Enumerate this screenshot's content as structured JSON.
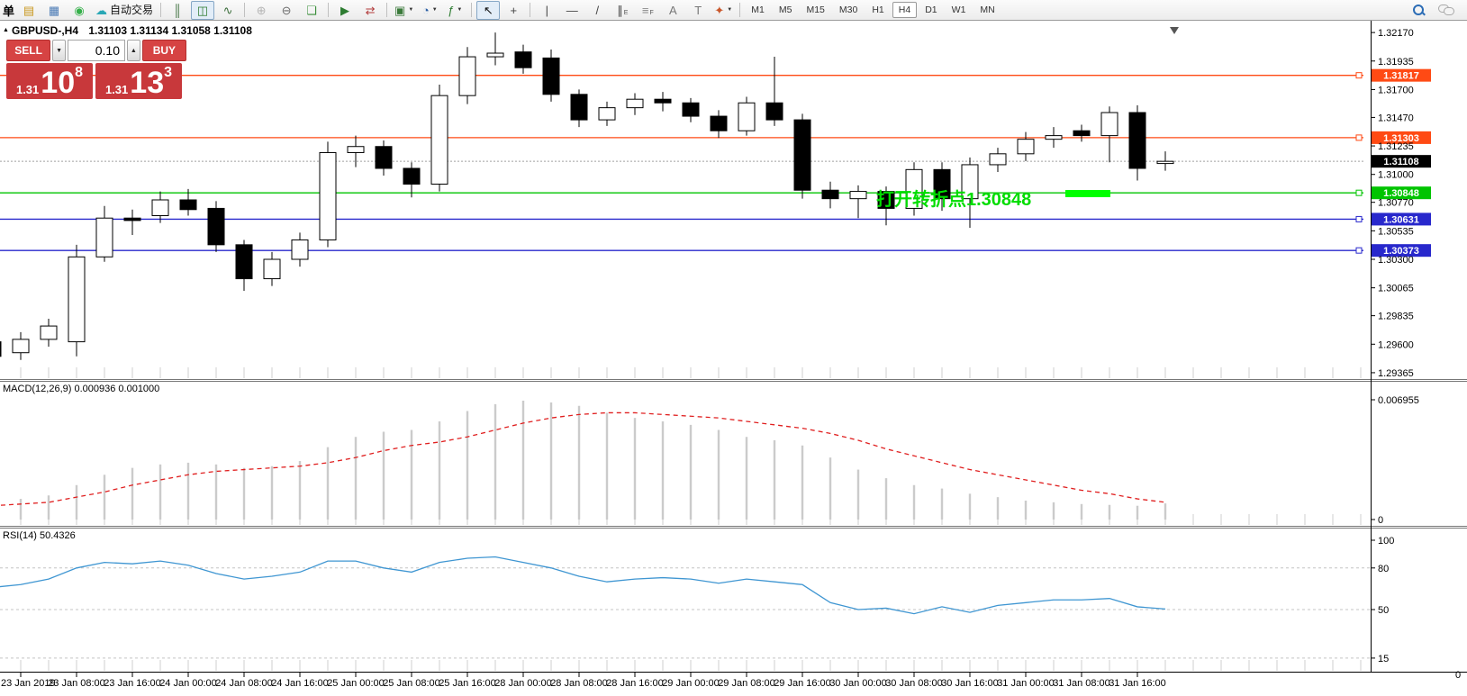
{
  "toolbar": {
    "left_text": "单",
    "items": [
      {
        "name": "new-order-icon",
        "glyph": "▤",
        "color": "#c9971c"
      },
      {
        "name": "market-watch-icon",
        "glyph": "▦",
        "color": "#4a7ab5"
      },
      {
        "name": "signals-icon",
        "glyph": "◉",
        "color": "#35b04a"
      },
      {
        "name": "auto-trading-button",
        "glyph": "☁",
        "color": "#28a7b5",
        "label": "自动交易"
      },
      {
        "sep": true
      },
      {
        "name": "bar-chart-icon",
        "glyph": "║",
        "color": "#3c6e3c"
      },
      {
        "name": "candlestick-chart-icon",
        "glyph": "◫",
        "color": "#2c7a2c",
        "selected": true
      },
      {
        "name": "line-chart-icon",
        "glyph": "∿",
        "color": "#3c6e3c"
      },
      {
        "sep": true
      },
      {
        "name": "zoom-in-icon",
        "glyph": "⊕",
        "color": "#b5b5b5"
      },
      {
        "name": "zoom-out-icon",
        "glyph": "⊖",
        "color": "#6d6d6d"
      },
      {
        "name": "tile-windows-icon",
        "glyph": "❏",
        "color": "#3a8f3a"
      },
      {
        "sep": true
      },
      {
        "name": "auto-scroll-icon",
        "glyph": "▶",
        "color": "#2e7d32"
      },
      {
        "name": "chart-shift-icon",
        "glyph": "⇄",
        "color": "#b23b3b"
      },
      {
        "sep": true
      },
      {
        "name": "new-template-icon",
        "glyph": "▣",
        "color": "#3a7a3a",
        "dropdown": true
      },
      {
        "name": "periods-icon",
        "glyph": "◔",
        "color": "#2b5fa5",
        "dropdown": true
      },
      {
        "name": "indicators-icon",
        "glyph": "ƒ",
        "color": "#2e7d32",
        "dropdown": true
      },
      {
        "sep": true
      },
      {
        "name": "cursor-icon",
        "glyph": "↖",
        "color": "#111",
        "selected": true
      },
      {
        "name": "crosshair-icon",
        "glyph": "+",
        "color": "#444"
      },
      {
        "sep": true
      },
      {
        "name": "vertical-line-icon",
        "glyph": "|",
        "color": "#444"
      },
      {
        "name": "horizontal-line-icon",
        "glyph": "—",
        "color": "#444"
      },
      {
        "name": "trendline-icon",
        "glyph": "/",
        "color": "#444"
      },
      {
        "name": "channel-icon",
        "glyph": "∥",
        "color": "#444",
        "sub": "E"
      },
      {
        "name": "fibonacci-icon",
        "glyph": "≡",
        "color": "#8a8a8a",
        "sub": "F"
      },
      {
        "name": "text-icon",
        "glyph": "A",
        "color": "#777"
      },
      {
        "name": "text-label-icon",
        "glyph": "T",
        "color": "#777"
      },
      {
        "name": "arrows-icon",
        "glyph": "✦",
        "color": "#c9572b",
        "dropdown": true
      },
      {
        "sep": true
      }
    ],
    "timeframes": [
      "M1",
      "M5",
      "M15",
      "M30",
      "H1",
      "H4",
      "D1",
      "W1",
      "MN"
    ],
    "selected_timeframe": "H4"
  },
  "icons": {
    "caret_down": "▼",
    "caret_up": "▲",
    "collapse": "▲"
  },
  "chart": {
    "symbol_period": "GBPUSD-,H4",
    "ohlc": "1.31103 1.31134 1.31058 1.31108"
  },
  "trade_panel": {
    "sell_label": "SELL",
    "buy_label": "BUY",
    "volume": "0.10",
    "sell": {
      "prefix": "1.31",
      "big": "10",
      "sup": "8"
    },
    "buy": {
      "prefix": "1.31",
      "big": "13",
      "sup": "3"
    }
  },
  "colors": {
    "lines": {
      "orange": "#ff4a14",
      "green": "#00c400",
      "blue": "#2828cc"
    },
    "current_tag": "#000000",
    "current_line": "#a0a0a0",
    "macd_hist": "#cbcbcb",
    "macd_signal": "#e02020",
    "rsi_line": "#3f96d2",
    "annotation_green": "#00dd00",
    "annotation_bar": "#00ff00"
  },
  "chart_data": {
    "type": "candlestick+indicators",
    "symbol": "GBPUSD-",
    "timeframe": "H4",
    "price_axis_ticks": [
      "1.32170",
      "1.31935",
      "1.31700",
      "1.31470",
      "1.31235",
      "1.31000",
      "1.30770",
      "1.30535",
      "1.30300",
      "1.30065",
      "1.29835",
      "1.29600",
      "1.29365"
    ],
    "time_labels": [
      "23 Jan 2019",
      "23 Jan 08:00",
      "23 Jan 16:00",
      "24 Jan 00:00",
      "24 Jan 08:00",
      "24 Jan 16:00",
      "25 Jan 00:00",
      "25 Jan 08:00",
      "25 Jan 16:00",
      "28 Jan 00:00",
      "28 Jan 08:00",
      "28 Jan 16:00",
      "29 Jan 00:00",
      "29 Jan 08:00",
      "29 Jan 16:00",
      "30 Jan 00:00",
      "30 Jan 08:00",
      "30 Jan 16:00",
      "31 Jan 00:00",
      "31 Jan 08:00",
      "31 Jan 16:00"
    ],
    "candles": [
      {
        "t": "22 Jan 20:00",
        "o": 1.2962,
        "h": 1.2966,
        "l": 1.2944,
        "c": 1.295
      },
      {
        "t": "23 Jan 00:00",
        "o": 1.2953,
        "h": 1.297,
        "l": 1.2947,
        "c": 1.2964
      },
      {
        "t": "23 Jan 04:00",
        "o": 1.2964,
        "h": 1.2981,
        "l": 1.2958,
        "c": 1.2975
      },
      {
        "t": "23 Jan 08:00",
        "o": 1.2962,
        "h": 1.3042,
        "l": 1.295,
        "c": 1.3032
      },
      {
        "t": "23 Jan 12:00",
        "o": 1.3032,
        "h": 1.3074,
        "l": 1.3028,
        "c": 1.3064
      },
      {
        "t": "23 Jan 16:00",
        "o": 1.3064,
        "h": 1.3071,
        "l": 1.305,
        "c": 1.3062
      },
      {
        "t": "23 Jan 20:00",
        "o": 1.3066,
        "h": 1.3086,
        "l": 1.306,
        "c": 1.3079
      },
      {
        "t": "24 Jan 00:00",
        "o": 1.3079,
        "h": 1.3088,
        "l": 1.3066,
        "c": 1.3071
      },
      {
        "t": "24 Jan 04:00",
        "o": 1.3072,
        "h": 1.3078,
        "l": 1.3036,
        "c": 1.3042
      },
      {
        "t": "24 Jan 08:00",
        "o": 1.3042,
        "h": 1.3046,
        "l": 1.3004,
        "c": 1.3014
      },
      {
        "t": "24 Jan 12:00",
        "o": 1.3014,
        "h": 1.3036,
        "l": 1.3008,
        "c": 1.303
      },
      {
        "t": "24 Jan 16:00",
        "o": 1.303,
        "h": 1.3052,
        "l": 1.3024,
        "c": 1.3046
      },
      {
        "t": "24 Jan 20:00",
        "o": 1.3046,
        "h": 1.3127,
        "l": 1.304,
        "c": 1.3118
      },
      {
        "t": "25 Jan 00:00",
        "o": 1.3118,
        "h": 1.3132,
        "l": 1.3106,
        "c": 1.3123
      },
      {
        "t": "25 Jan 04:00",
        "o": 1.3123,
        "h": 1.3128,
        "l": 1.3099,
        "c": 1.3105
      },
      {
        "t": "25 Jan 08:00",
        "o": 1.3105,
        "h": 1.311,
        "l": 1.3081,
        "c": 1.3092
      },
      {
        "t": "25 Jan 12:00",
        "o": 1.3092,
        "h": 1.3174,
        "l": 1.3086,
        "c": 1.3165
      },
      {
        "t": "25 Jan 16:00",
        "o": 1.3165,
        "h": 1.3205,
        "l": 1.3158,
        "c": 1.3197
      },
      {
        "t": "25 Jan 20:00",
        "o": 1.3197,
        "h": 1.3217,
        "l": 1.319,
        "c": 1.32
      },
      {
        "t": "28 Jan 00:00",
        "o": 1.3201,
        "h": 1.3207,
        "l": 1.3183,
        "c": 1.3188
      },
      {
        "t": "28 Jan 04:00",
        "o": 1.3196,
        "h": 1.3203,
        "l": 1.316,
        "c": 1.3166
      },
      {
        "t": "28 Jan 08:00",
        "o": 1.3166,
        "h": 1.317,
        "l": 1.3139,
        "c": 1.3145
      },
      {
        "t": "28 Jan 12:00",
        "o": 1.3145,
        "h": 1.316,
        "l": 1.314,
        "c": 1.3155
      },
      {
        "t": "28 Jan 16:00",
        "o": 1.3155,
        "h": 1.3167,
        "l": 1.3149,
        "c": 1.3162
      },
      {
        "t": "28 Jan 20:00",
        "o": 1.3162,
        "h": 1.3168,
        "l": 1.3152,
        "c": 1.3159
      },
      {
        "t": "29 Jan 00:00",
        "o": 1.3159,
        "h": 1.3163,
        "l": 1.3143,
        "c": 1.3148
      },
      {
        "t": "29 Jan 04:00",
        "o": 1.3148,
        "h": 1.3153,
        "l": 1.313,
        "c": 1.3136
      },
      {
        "t": "29 Jan 08:00",
        "o": 1.3136,
        "h": 1.3164,
        "l": 1.3132,
        "c": 1.3159
      },
      {
        "t": "29 Jan 12:00",
        "o": 1.3159,
        "h": 1.3197,
        "l": 1.314,
        "c": 1.3145
      },
      {
        "t": "29 Jan 16:00",
        "o": 1.3145,
        "h": 1.315,
        "l": 1.308,
        "c": 1.3087
      },
      {
        "t": "29 Jan 20:00",
        "o": 1.3087,
        "h": 1.3094,
        "l": 1.3072,
        "c": 1.308
      },
      {
        "t": "30 Jan 00:00",
        "o": 1.308,
        "h": 1.3091,
        "l": 1.3064,
        "c": 1.3086
      },
      {
        "t": "30 Jan 04:00",
        "o": 1.3086,
        "h": 1.309,
        "l": 1.3058,
        "c": 1.3072
      },
      {
        "t": "30 Jan 08:00",
        "o": 1.3072,
        "h": 1.311,
        "l": 1.3066,
        "c": 1.3104
      },
      {
        "t": "30 Jan 12:00",
        "o": 1.3104,
        "h": 1.311,
        "l": 1.307,
        "c": 1.308
      },
      {
        "t": "30 Jan 16:00",
        "o": 1.308,
        "h": 1.3114,
        "l": 1.3056,
        "c": 1.3108
      },
      {
        "t": "30 Jan 20:00",
        "o": 1.3108,
        "h": 1.3122,
        "l": 1.3102,
        "c": 1.3117
      },
      {
        "t": "31 Jan 00:00",
        "o": 1.3117,
        "h": 1.3135,
        "l": 1.3111,
        "c": 1.3129
      },
      {
        "t": "31 Jan 04:00",
        "o": 1.3129,
        "h": 1.3139,
        "l": 1.3122,
        "c": 1.3132
      },
      {
        "t": "31 Jan 08:00",
        "o": 1.3136,
        "h": 1.3141,
        "l": 1.3127,
        "c": 1.3132
      },
      {
        "t": "31 Jan 12:00",
        "o": 1.3132,
        "h": 1.3156,
        "l": 1.311,
        "c": 1.3151
      },
      {
        "t": "31 Jan 16:00",
        "o": 1.3151,
        "h": 1.3157,
        "l": 1.3095,
        "c": 1.3105
      },
      {
        "t": "31 Jan 20:00",
        "o": 1.3109,
        "h": 1.3119,
        "l": 1.3103,
        "c": 1.31108
      }
    ],
    "hlines": [
      {
        "price": 1.31817,
        "label": "1.31817",
        "color": "orange"
      },
      {
        "price": 1.31303,
        "label": "1.31303",
        "color": "orange"
      },
      {
        "price": 1.30848,
        "label": "1.30848",
        "color": "green"
      },
      {
        "price": 1.30631,
        "label": "1.30631",
        "color": "blue"
      },
      {
        "price": 1.30373,
        "label": "1.30373",
        "color": "blue"
      }
    ],
    "current_price": {
      "price": 1.31108,
      "label": "1.31108"
    },
    "macd": {
      "label": "MACD(12,26,9) 0.000936 0.001000",
      "axis_max_label": "0.006955",
      "axis_min_label": "0",
      "max": 0.006955,
      "histogram": [
        0.001,
        0.0012,
        0.0014,
        0.002,
        0.0026,
        0.003,
        0.0032,
        0.0033,
        0.0032,
        0.003,
        0.0031,
        0.0034,
        0.0042,
        0.0048,
        0.0051,
        0.0052,
        0.0057,
        0.0063,
        0.0067,
        0.0069,
        0.0068,
        0.0066,
        0.0062,
        0.0059,
        0.0057,
        0.0055,
        0.0052,
        0.0048,
        0.0046,
        0.0043,
        0.0036,
        0.0029,
        0.0024,
        0.002,
        0.0018,
        0.0015,
        0.0013,
        0.0011,
        0.001,
        0.0009,
        0.00085,
        0.0008,
        0.000936
      ],
      "signal": [
        0.0008,
        0.0009,
        0.001,
        0.0013,
        0.0016,
        0.002,
        0.0023,
        0.0026,
        0.0028,
        0.0029,
        0.003,
        0.0031,
        0.0033,
        0.0036,
        0.004,
        0.0043,
        0.0045,
        0.0048,
        0.0052,
        0.0056,
        0.0059,
        0.0061,
        0.0062,
        0.0062,
        0.0061,
        0.006,
        0.0059,
        0.0057,
        0.0055,
        0.0053,
        0.005,
        0.0046,
        0.0041,
        0.0037,
        0.0033,
        0.0029,
        0.0026,
        0.0023,
        0.002,
        0.0017,
        0.0015,
        0.0012,
        0.001
      ]
    },
    "rsi": {
      "label": "RSI(14) 50.4326",
      "levels": [
        80,
        50,
        15
      ],
      "axis_ticks": [
        "100",
        "80",
        "50",
        "15"
      ],
      "zero_label": "0",
      "values": [
        66,
        68,
        72,
        80,
        84,
        83,
        85,
        82,
        76,
        72,
        74,
        77,
        85,
        85,
        80,
        77,
        84,
        87,
        88,
        84,
        80,
        74,
        70,
        72,
        73,
        72,
        69,
        72,
        70,
        68,
        55,
        50,
        51,
        47,
        52,
        48,
        53,
        55,
        57,
        57,
        58,
        52,
        50.43
      ]
    },
    "annotation": {
      "text": "打开转折点1.30848"
    }
  }
}
